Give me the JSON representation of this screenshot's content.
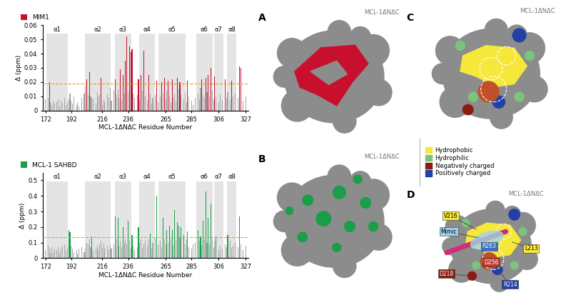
{
  "chart_data": [
    {
      "type": "bar",
      "panel": "A",
      "x": [
        172,
        174,
        175,
        176,
        177,
        178,
        179,
        181,
        182,
        183,
        184,
        185,
        187,
        188,
        189,
        190,
        191,
        192,
        193,
        194,
        196,
        197,
        198,
        200,
        202,
        203,
        204,
        205,
        206,
        207,
        208,
        209,
        211,
        212,
        213,
        214,
        215,
        216,
        217,
        218,
        220,
        221,
        222,
        223,
        225,
        226,
        227,
        228,
        229,
        230,
        231,
        232,
        233,
        234,
        235,
        236,
        237,
        238,
        239,
        240,
        241,
        243,
        244,
        245,
        246,
        247,
        248,
        249,
        251,
        252,
        253,
        254,
        255,
        257,
        258,
        259,
        261,
        262,
        263,
        264,
        265,
        266,
        267,
        268,
        269,
        270,
        271,
        272,
        273,
        274,
        275,
        276,
        277,
        279,
        280,
        281,
        282,
        283,
        285,
        286,
        288,
        290,
        291,
        292,
        293,
        294,
        295,
        296,
        297,
        298,
        299,
        300,
        301,
        302,
        303,
        304,
        306,
        307,
        309,
        311,
        312,
        313,
        315,
        316,
        317,
        319,
        321,
        322,
        323,
        325,
        327
      ],
      "series": [
        {
          "name": "MIM1",
          "color": "#c8102e",
          "values": [
            0.008,
            0.009,
            0.02,
            0.006,
            0.004,
            0.007,
            0.005,
            0.006,
            0.008,
            0.003,
            0.007,
            0.005,
            0.009,
            0.004,
            0.006,
            0.008,
            0.012,
            0.007,
            0.005,
            0.01,
            0.004,
            0.006,
            0.003,
            0.009,
            0.012,
            0.017,
            0.022,
            0.011,
            0.027,
            0.01,
            0.009,
            0.008,
            0.005,
            0.013,
            0.01,
            0.011,
            0.023,
            0.004,
            0.008,
            0.006,
            0.012,
            0.009,
            0.016,
            0.007,
            0.014,
            0.022,
            0.011,
            0.015,
            0.009,
            0.029,
            0.008,
            0.025,
            0.012,
            0.035,
            0.052,
            0.013,
            0.045,
            0.041,
            0.043,
            0.012,
            0.009,
            0.011,
            0.022,
            0.008,
            0.025,
            0.014,
            0.042,
            0.01,
            0.007,
            0.025,
            0.012,
            0.005,
            0.009,
            0.011,
            0.021,
            0.006,
            0.01,
            0.02,
            0.012,
            0.023,
            0.008,
            0.014,
            0.021,
            0.01,
            0.006,
            0.022,
            0.009,
            0.012,
            0.007,
            0.023,
            0.015,
            0.02,
            0.011,
            0.008,
            0.013,
            0.006,
            0.021,
            0.01,
            0.007,
            0.004,
            0.009,
            0.012,
            0.008,
            0.016,
            0.022,
            0.011,
            0.009,
            0.023,
            0.013,
            0.025,
            0.01,
            0.03,
            0.014,
            0.008,
            0.024,
            0.01,
            0.006,
            0.011,
            0.007,
            0.022,
            0.009,
            0.013,
            0.008,
            0.021,
            0.01,
            0.012,
            0.009,
            0.031,
            0.03,
            0.007,
            0.01
          ]
        }
      ],
      "color": "#a6a6a6",
      "threshold": 0.019,
      "helices": [
        {
          "label": "α1",
          "start": 173,
          "end": 189
        },
        {
          "label": "α2",
          "start": 203,
          "end": 222
        },
        {
          "label": "α3",
          "start": 226,
          "end": 238
        },
        {
          "label": "α4",
          "start": 245,
          "end": 256
        },
        {
          "label": "α5",
          "start": 260,
          "end": 280
        },
        {
          "label": "α6",
          "start": 289,
          "end": 301
        },
        {
          "label": "α7",
          "start": 303,
          "end": 309
        },
        {
          "label": "α8",
          "start": 313,
          "end": 319
        }
      ],
      "xlim": [
        170,
        329
      ],
      "xticks": [
        172,
        192,
        216,
        236,
        265,
        285,
        306,
        327
      ],
      "ylim": [
        0,
        0.06
      ],
      "yticks": [
        0,
        0.01,
        0.02,
        0.03,
        0.04,
        0.05,
        0.06
      ],
      "xlabel": "MCL-1ΔNΔC Residue Number",
      "ylabel": "Δ (ppm)",
      "legend": "lower left"
    },
    {
      "type": "bar",
      "panel": "B",
      "x": [
        172,
        174,
        175,
        176,
        177,
        178,
        179,
        181,
        182,
        183,
        184,
        185,
        187,
        188,
        189,
        190,
        191,
        192,
        193,
        194,
        196,
        197,
        198,
        200,
        202,
        203,
        204,
        205,
        206,
        207,
        208,
        209,
        211,
        212,
        213,
        214,
        215,
        216,
        217,
        218,
        220,
        221,
        222,
        223,
        225,
        226,
        227,
        228,
        229,
        230,
        231,
        232,
        233,
        234,
        235,
        236,
        237,
        238,
        239,
        240,
        241,
        243,
        244,
        245,
        246,
        247,
        248,
        249,
        251,
        252,
        253,
        254,
        255,
        257,
        258,
        259,
        261,
        262,
        263,
        264,
        265,
        266,
        267,
        268,
        269,
        270,
        271,
        272,
        273,
        274,
        275,
        276,
        277,
        279,
        280,
        281,
        282,
        283,
        285,
        286,
        288,
        290,
        291,
        292,
        293,
        294,
        295,
        296,
        297,
        298,
        299,
        300,
        301,
        302,
        303,
        304,
        306,
        307,
        309,
        311,
        312,
        313,
        315,
        316,
        317,
        319,
        321,
        322,
        323,
        325,
        327
      ],
      "series": [
        {
          "name": "MCL-1 SAHBD",
          "color": "#1a9e4a",
          "values": [
            0.05,
            0.08,
            0.06,
            0.03,
            0.07,
            0.04,
            0.06,
            0.05,
            0.07,
            0.04,
            0.06,
            0.08,
            0.09,
            0.05,
            0.07,
            0.18,
            0.165,
            0.08,
            0.06,
            0.04,
            0.05,
            0.03,
            0.06,
            0.07,
            0.04,
            0.06,
            0.1,
            0.09,
            0.12,
            0.07,
            0.14,
            0.05,
            0.06,
            0.08,
            0.05,
            0.09,
            0.11,
            0.07,
            0.1,
            0.06,
            0.08,
            0.05,
            0.09,
            0.06,
            0.09,
            0.27,
            0.12,
            0.26,
            0.08,
            0.11,
            0.07,
            0.2,
            0.1,
            0.12,
            0.09,
            0.24,
            0.11,
            0.06,
            0.15,
            0.08,
            0.05,
            0.07,
            0.2,
            0.1,
            0.12,
            0.06,
            0.09,
            0.11,
            0.08,
            0.12,
            0.16,
            0.06,
            0.1,
            0.13,
            0.4,
            0.09,
            0.11,
            0.07,
            0.26,
            0.12,
            0.09,
            0.18,
            0.1,
            0.21,
            0.12,
            0.18,
            0.08,
            0.31,
            0.11,
            0.23,
            0.21,
            0.13,
            0.2,
            0.15,
            0.09,
            0.12,
            0.17,
            0.07,
            0.06,
            0.09,
            0.1,
            0.18,
            0.11,
            0.14,
            0.08,
            0.24,
            0.12,
            0.43,
            0.1,
            0.26,
            0.09,
            0.35,
            0.12,
            0.07,
            0.11,
            0.14,
            0.05,
            0.08,
            0.06,
            0.09,
            0.07,
            0.15,
            0.11,
            0.06,
            0.08,
            0.1,
            0.07,
            0.27,
            0.09,
            0.05,
            0.08
          ]
        }
      ],
      "color": "#a6a6a6",
      "threshold": 0.135,
      "helices": [
        {
          "label": "α1",
          "start": 173,
          "end": 189
        },
        {
          "label": "α2",
          "start": 203,
          "end": 222
        },
        {
          "label": "α3",
          "start": 226,
          "end": 238
        },
        {
          "label": "α4",
          "start": 245,
          "end": 256
        },
        {
          "label": "α5",
          "start": 260,
          "end": 280
        },
        {
          "label": "α6",
          "start": 289,
          "end": 301
        },
        {
          "label": "α7",
          "start": 303,
          "end": 309
        },
        {
          "label": "α8",
          "start": 313,
          "end": 319
        }
      ],
      "xlim": [
        170,
        329
      ],
      "xticks": [
        172,
        192,
        216,
        236,
        265,
        285,
        306,
        327
      ],
      "ylim": [
        0,
        0.55
      ],
      "yticks": [
        0,
        0.1,
        0.2,
        0.3,
        0.4,
        0.5
      ],
      "xlabel": "MCL-1ΔNΔC Residue Number",
      "ylabel": "Δ (ppm)",
      "legend": "lower left"
    }
  ],
  "structures": [
    {
      "panel": "A",
      "title": "MCL-1ΔNΔC",
      "color": "#c8102e"
    },
    {
      "panel": "B",
      "title": "MCL-1ΔNΔC",
      "color": "#1a9e4a"
    },
    {
      "panel": "C",
      "title": "MCL-1ΔNΔC",
      "legend": [
        {
          "label": "Hydrophobic",
          "color": "#f5e83a"
        },
        {
          "label": "Hydrophilic",
          "color": "#7cc47c"
        },
        {
          "label": "Negatively charged",
          "color": "#8b1a10"
        },
        {
          "label": "Positively charged",
          "color": "#2340a8"
        }
      ]
    },
    {
      "panel": "D",
      "title": "MCL-1ΔNΔC",
      "annotations": [
        {
          "text": "V216",
          "color": "#f5e83a"
        },
        {
          "text": "Mimic",
          "color": "#9fd3e6"
        },
        {
          "text": "D218",
          "color": "#8b1a10"
        },
        {
          "text": "R263",
          "color": "#3a6fc4"
        },
        {
          "text": "D256",
          "color": "#c0392b"
        },
        {
          "text": "R214",
          "color": "#2340a8"
        },
        {
          "text": "L213",
          "color": "#f5e83a"
        }
      ]
    }
  ]
}
